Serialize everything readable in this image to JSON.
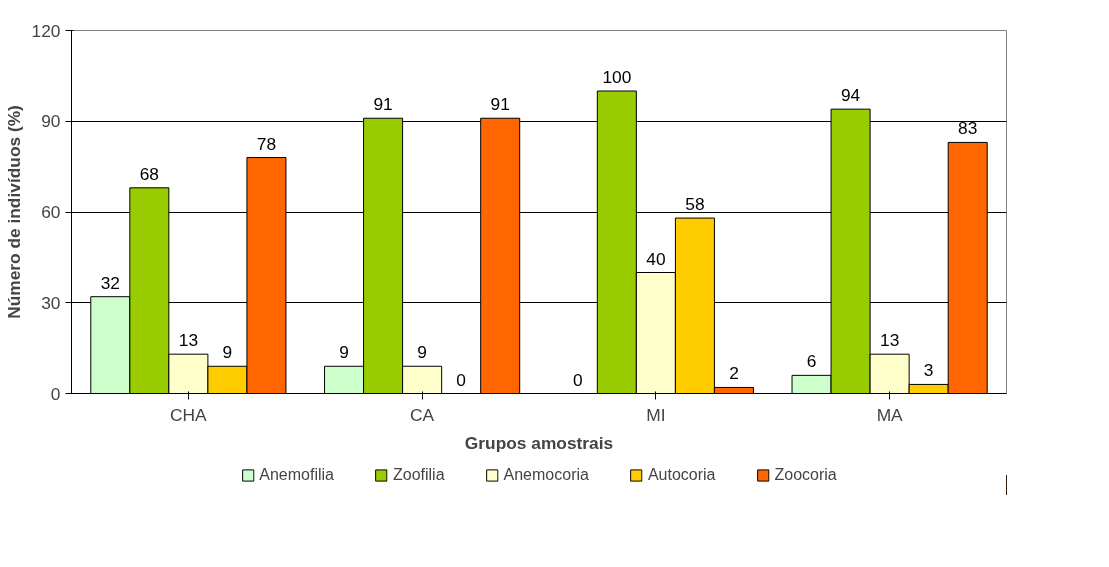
{
  "chart_data": {
    "type": "bar",
    "xlabel": "Grupos amostrais",
    "ylabel": "Número de indivíduos (%)",
    "categories": [
      "CHA",
      "CA",
      "MI",
      "MA"
    ],
    "series": [
      {
        "name": "Anemofilia",
        "color": "#ccffcc",
        "values": [
          32,
          9,
          0,
          6
        ]
      },
      {
        "name": "Zoofilia",
        "color": "#99cc00",
        "values": [
          68,
          91,
          100,
          94
        ]
      },
      {
        "name": "Anemocoria",
        "color": "#ffffcc",
        "values": [
          13,
          9,
          40,
          13
        ]
      },
      {
        "name": "Autocoria",
        "color": "#ffcc00",
        "values": [
          9,
          0,
          58,
          3
        ]
      },
      {
        "name": "Zoocoria",
        "color": "#ff6600",
        "values": [
          78,
          91,
          2,
          83
        ]
      }
    ],
    "ylim": [
      0,
      120
    ],
    "yticks": [
      0,
      30,
      60,
      90,
      120
    ],
    "grid": "y",
    "legend": "bottom",
    "data_labels": true
  }
}
